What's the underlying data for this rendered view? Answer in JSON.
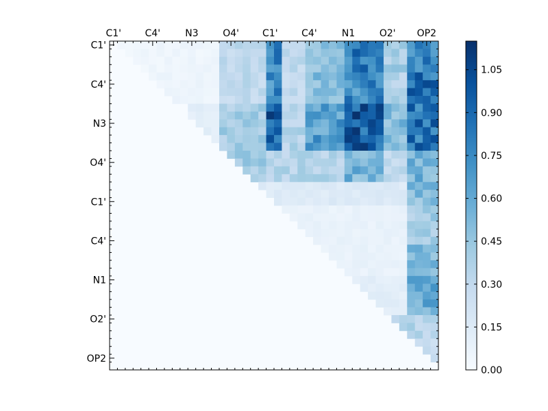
{
  "chart_data": {
    "type": "heatmap",
    "title": "",
    "xlabel": "",
    "ylabel": "",
    "grid": false,
    "x_tick_labels": [
      "C1'",
      "C4'",
      "N3",
      "O4'",
      "C1'",
      "C4'",
      "N1",
      "O2'",
      "OP2"
    ],
    "y_tick_labels": [
      "C1'",
      "C4'",
      "N3",
      "O4'",
      "C1'",
      "C4'",
      "N1",
      "O2'",
      "OP2"
    ],
    "x_tick_positions": [
      0.5,
      5.5,
      10.5,
      15.5,
      20.5,
      25.5,
      30.5,
      35.5,
      40.5
    ],
    "y_tick_positions": [
      0.5,
      5.5,
      10.5,
      15.5,
      20.5,
      25.5,
      30.5,
      35.5,
      40.5
    ],
    "grid_rows": 42,
    "grid_cols": 42,
    "upper_triangle_only": true,
    "colorbar": {
      "colormap": "Blues",
      "vmin": 0.0,
      "vmax": 1.15,
      "ticks": [
        "0.00",
        "0.15",
        "0.30",
        "0.45",
        "0.60",
        "0.75",
        "0.90",
        "1.05"
      ],
      "tick_values": [
        0.0,
        0.15,
        0.3,
        0.45,
        0.6,
        0.75,
        0.9,
        1.05
      ],
      "stops": [
        "#f7fbff",
        "#deebf7",
        "#c6dbef",
        "#9ecae1",
        "#6baed6",
        "#4292c6",
        "#2171b5",
        "#08519c",
        "#08306b"
      ]
    },
    "blocks": [
      {
        "rows": [
          0,
          4
        ],
        "cols": [
          1,
          14
        ],
        "value": 0.05
      },
      {
        "rows": [
          0,
          4
        ],
        "cols": [
          14,
          20
        ],
        "value": 0.3
      },
      {
        "rows": [
          0,
          4
        ],
        "cols": [
          20,
          22
        ],
        "value": 0.8
      },
      {
        "rows": [
          0,
          4
        ],
        "cols": [
          22,
          25
        ],
        "value": 0.3
      },
      {
        "rows": [
          0,
          4
        ],
        "cols": [
          25,
          30
        ],
        "value": 0.45
      },
      {
        "rows": [
          0,
          4
        ],
        "cols": [
          30,
          35
        ],
        "value": 0.8
      },
      {
        "rows": [
          0,
          4
        ],
        "cols": [
          35,
          38
        ],
        "value": 0.4
      },
      {
        "rows": [
          0,
          4
        ],
        "cols": [
          38,
          42
        ],
        "value": 0.75
      },
      {
        "rows": [
          4,
          8
        ],
        "cols": [
          5,
          14
        ],
        "value": 0.06
      },
      {
        "rows": [
          4,
          8
        ],
        "cols": [
          14,
          20
        ],
        "value": 0.3
      },
      {
        "rows": [
          4,
          8
        ],
        "cols": [
          20,
          22
        ],
        "value": 0.75
      },
      {
        "rows": [
          4,
          8
        ],
        "cols": [
          22,
          25
        ],
        "value": 0.3
      },
      {
        "rows": [
          4,
          8
        ],
        "cols": [
          25,
          30
        ],
        "value": 0.5
      },
      {
        "rows": [
          4,
          8
        ],
        "cols": [
          30,
          35
        ],
        "value": 0.75
      },
      {
        "rows": [
          4,
          8
        ],
        "cols": [
          35,
          38
        ],
        "value": 0.35
      },
      {
        "rows": [
          4,
          8
        ],
        "cols": [
          38,
          42
        ],
        "value": 0.85
      },
      {
        "rows": [
          8,
          14
        ],
        "cols": [
          10,
          14
        ],
        "value": 0.12
      },
      {
        "rows": [
          8,
          14
        ],
        "cols": [
          14,
          20
        ],
        "value": 0.4
      },
      {
        "rows": [
          8,
          14
        ],
        "cols": [
          20,
          22
        ],
        "value": 0.95
      },
      {
        "rows": [
          8,
          14
        ],
        "cols": [
          22,
          25
        ],
        "value": 0.35
      },
      {
        "rows": [
          8,
          14
        ],
        "cols": [
          25,
          30
        ],
        "value": 0.65
      },
      {
        "rows": [
          8,
          14
        ],
        "cols": [
          30,
          35
        ],
        "value": 0.95
      },
      {
        "rows": [
          8,
          14
        ],
        "cols": [
          35,
          38
        ],
        "value": 0.5
      },
      {
        "rows": [
          8,
          14
        ],
        "cols": [
          38,
          42
        ],
        "value": 0.85
      },
      {
        "rows": [
          14,
          18
        ],
        "cols": [
          15,
          20
        ],
        "value": 0.4
      },
      {
        "rows": [
          14,
          18
        ],
        "cols": [
          20,
          25
        ],
        "value": 0.35
      },
      {
        "rows": [
          14,
          18
        ],
        "cols": [
          25,
          30
        ],
        "value": 0.35
      },
      {
        "rows": [
          14,
          18
        ],
        "cols": [
          30,
          35
        ],
        "value": 0.55
      },
      {
        "rows": [
          14,
          18
        ],
        "cols": [
          35,
          38
        ],
        "value": 0.3
      },
      {
        "rows": [
          14,
          18
        ],
        "cols": [
          38,
          42
        ],
        "value": 0.55
      },
      {
        "rows": [
          18,
          21
        ],
        "cols": [
          19,
          38
        ],
        "value": 0.15
      },
      {
        "rows": [
          18,
          21
        ],
        "cols": [
          38,
          42
        ],
        "value": 0.5
      },
      {
        "rows": [
          21,
          26
        ],
        "cols": [
          22,
          38
        ],
        "value": 0.08
      },
      {
        "rows": [
          21,
          26
        ],
        "cols": [
          38,
          42
        ],
        "value": 0.4
      },
      {
        "rows": [
          26,
          30
        ],
        "cols": [
          27,
          38
        ],
        "value": 0.08
      },
      {
        "rows": [
          26,
          30
        ],
        "cols": [
          38,
          42
        ],
        "value": 0.5
      },
      {
        "rows": [
          30,
          35
        ],
        "cols": [
          31,
          38
        ],
        "value": 0.12
      },
      {
        "rows": [
          30,
          35
        ],
        "cols": [
          38,
          42
        ],
        "value": 0.6
      },
      {
        "rows": [
          35,
          38
        ],
        "cols": [
          36,
          42
        ],
        "value": 0.35
      },
      {
        "rows": [
          38,
          41
        ],
        "cols": [
          39,
          42
        ],
        "value": 0.25
      }
    ]
  }
}
